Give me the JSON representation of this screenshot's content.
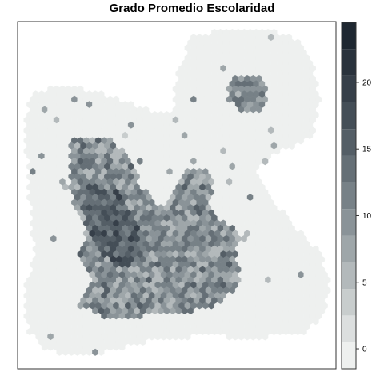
{
  "title": "Grado Promedio Escolaridad",
  "legend": {
    "min": -1.5,
    "max": 24.5,
    "step": 2,
    "ticks": [
      {
        "value": 0,
        "label": "0"
      },
      {
        "value": 5,
        "label": "5"
      },
      {
        "value": 10,
        "label": "10"
      },
      {
        "value": 15,
        "label": "15"
      },
      {
        "value": 20,
        "label": "20"
      }
    ],
    "palette": [
      "#eef0ef",
      "#dcdfdf",
      "#c8cdcd",
      "#b3b9bb",
      "#9ea6a9",
      "#8a9398",
      "#778187",
      "#656f76",
      "#545e66",
      "#444e57",
      "#363f49",
      "#29323c",
      "#1e2731"
    ]
  },
  "map": {
    "background_value": 0.2,
    "hex_size": "small",
    "regions": [
      {
        "name": "northwest-cluster",
        "center": [
          0.28,
          0.52
        ],
        "value": 14
      },
      {
        "name": "upper-arm",
        "center": [
          0.22,
          0.4
        ],
        "value": 10
      },
      {
        "name": "central-spine",
        "center": [
          0.4,
          0.62
        ],
        "value": 13
      },
      {
        "name": "right-arm",
        "center": [
          0.55,
          0.55
        ],
        "value": 11
      },
      {
        "name": "southern-lobe",
        "center": [
          0.4,
          0.8
        ],
        "value": 9
      },
      {
        "name": "southeast-lobe",
        "center": [
          0.55,
          0.8
        ],
        "value": 8
      },
      {
        "name": "northeast-island",
        "center": [
          0.72,
          0.2
        ],
        "value": 9
      }
    ]
  }
}
